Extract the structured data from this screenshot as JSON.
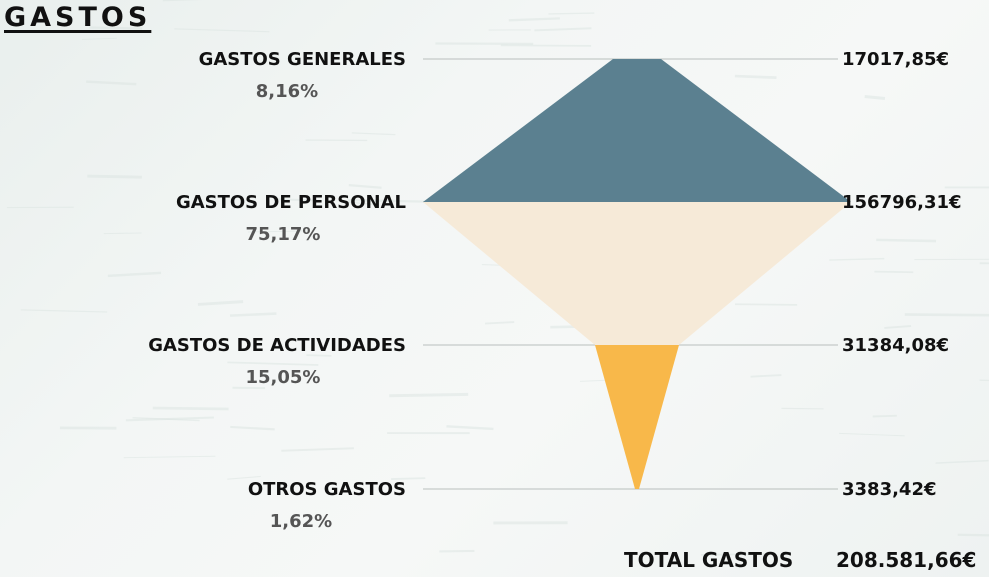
{
  "header": {
    "title": "GASTOS"
  },
  "chart_data": {
    "type": "funnel",
    "currency": "€",
    "stages": [
      {
        "name": "GASTOS GENERALES",
        "percent": "8,16%",
        "value": 17017.85,
        "value_label": "17017,85€",
        "color": "#5b8090"
      },
      {
        "name": "GASTOS DE PERSONAL",
        "percent": "75,17%",
        "value": 156796.31,
        "value_label": "156796,31€",
        "color": "#f6ead8"
      },
      {
        "name": "GASTOS DE ACTIVIDADES",
        "percent": "15,05%",
        "value": 31384.08,
        "value_label": "31384,08€",
        "color": "#f8b84a"
      },
      {
        "name": "OTROS GASTOS",
        "percent": "1,62%",
        "value": 3383.42,
        "value_label": "3383,42€",
        "color": "#f8b84a"
      }
    ],
    "total": {
      "label": "TOTAL GASTOS",
      "value": 208581.66,
      "value_label": "208.581,66€"
    }
  }
}
